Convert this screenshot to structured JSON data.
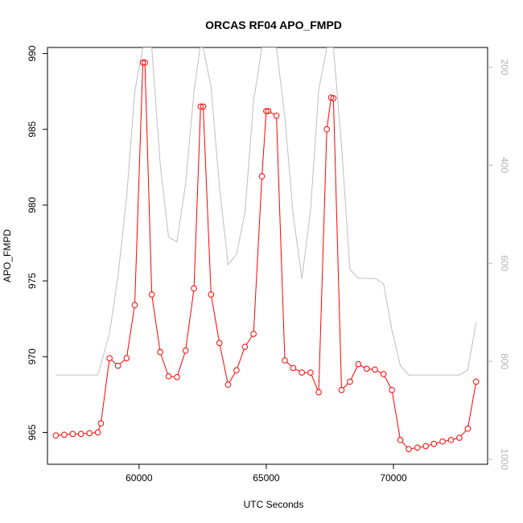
{
  "chart_data": {
    "type": "line",
    "title": "ORCAS RF04 APO_FMPD",
    "xlabel": "UTC Seconds",
    "ylabel": "APO_FMPD",
    "xlim": [
      56400,
      73700
    ],
    "ylim": [
      962.9,
      990.4
    ],
    "y2lim": [
      1010,
      160
    ],
    "x_ticks": [
      60000,
      65000,
      70000
    ],
    "y_ticks": [
      965,
      970,
      975,
      980,
      985,
      990
    ],
    "y2_ticks": [
      200,
      400,
      600,
      800,
      1000
    ],
    "x_tick_labels": [
      "60000",
      "65000",
      "70000"
    ],
    "y_tick_labels": [
      "965",
      "970",
      "975",
      "980",
      "985",
      "990"
    ],
    "y2_tick_labels": [
      "200",
      "400",
      "600",
      "800",
      "1000"
    ],
    "series": [
      {
        "axis": "left",
        "color": "#ff0000",
        "marker": "open-circle",
        "x": [
          56730,
          57060,
          57390,
          57720,
          58050,
          58380,
          58500,
          58840,
          59170,
          59510,
          59830,
          60150,
          60230,
          60500,
          60830,
          61160,
          61490,
          61830,
          62160,
          62420,
          62520,
          62830,
          63160,
          63500,
          63830,
          64160,
          64500,
          64830,
          65000,
          65080,
          65400,
          65730,
          66060,
          66400,
          66740,
          67060,
          67380,
          67550,
          67640,
          67960,
          68290,
          68620,
          68950,
          69270,
          69610,
          69940,
          70270,
          70600,
          70940,
          71270,
          71590,
          71930,
          72260,
          72590,
          72920,
          73250
        ],
        "y": [
          964.8,
          964.85,
          964.9,
          964.9,
          964.95,
          965.0,
          965.6,
          969.9,
          969.4,
          969.9,
          973.4,
          989.4,
          989.4,
          974.1,
          970.3,
          968.7,
          968.65,
          970.4,
          974.5,
          986.5,
          986.5,
          974.1,
          970.9,
          968.15,
          969.1,
          970.65,
          971.5,
          981.9,
          986.2,
          986.2,
          985.9,
          969.75,
          969.25,
          968.95,
          968.95,
          967.65,
          985.0,
          987.1,
          987.05,
          967.8,
          968.35,
          969.5,
          969.2,
          969.15,
          968.85,
          967.8,
          964.5,
          963.9,
          964.0,
          964.1,
          964.25,
          964.4,
          964.5,
          964.65,
          965.25,
          968.35
        ]
      },
      {
        "axis": "right",
        "color": "#bebebe",
        "marker": "none",
        "x": [
          56730,
          57060,
          57390,
          57720,
          58050,
          58380,
          58840,
          59170,
          59510,
          59830,
          60150,
          60500,
          60830,
          61160,
          61490,
          61830,
          62160,
          62400,
          62520,
          62830,
          63160,
          63500,
          63830,
          64160,
          64500,
          64830,
          65080,
          65400,
          65730,
          66060,
          66400,
          66740,
          67060,
          67380,
          67640,
          67960,
          68290,
          68620,
          68950,
          69270,
          69610,
          69940,
          70270,
          70600,
          70940,
          71270,
          71590,
          71930,
          72260,
          72590,
          72920,
          73250
        ],
        "y": [
          828,
          828,
          828,
          828,
          828,
          828,
          743,
          627,
          467,
          250,
          160,
          160,
          398,
          547,
          556,
          438,
          250,
          160,
          160,
          240,
          443,
          603,
          582,
          497,
          270,
          160,
          160,
          160,
          302,
          502,
          632,
          493,
          247,
          160,
          160,
          361,
          612,
          631,
          631,
          631,
          642,
          736,
          809,
          828,
          828,
          828,
          828,
          828,
          828,
          828,
          818,
          720
        ]
      }
    ]
  }
}
